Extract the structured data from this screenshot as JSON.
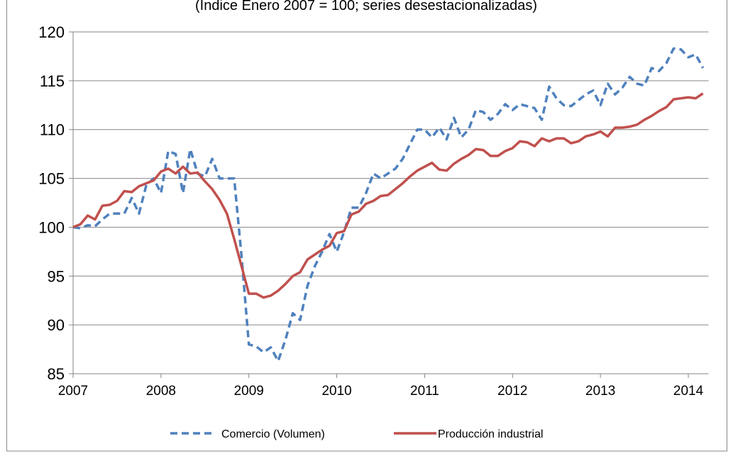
{
  "chart_data": {
    "type": "line",
    "subtitle": "(Índice Enero 2007 = 100; series desestacionalizadas)",
    "x": [
      2007,
      2007.083,
      2007.167,
      2007.25,
      2007.333,
      2007.417,
      2007.5,
      2007.583,
      2007.667,
      2007.75,
      2007.833,
      2007.917,
      2008,
      2008.083,
      2008.167,
      2008.25,
      2008.333,
      2008.417,
      2008.5,
      2008.583,
      2008.667,
      2008.75,
      2008.833,
      2008.917,
      2009,
      2009.083,
      2009.167,
      2009.25,
      2009.333,
      2009.417,
      2009.5,
      2009.583,
      2009.667,
      2009.75,
      2009.833,
      2009.917,
      2010,
      2010.083,
      2010.167,
      2010.25,
      2010.333,
      2010.417,
      2010.5,
      2010.583,
      2010.667,
      2010.75,
      2010.833,
      2010.917,
      2011,
      2011.083,
      2011.167,
      2011.25,
      2011.333,
      2011.417,
      2011.5,
      2011.583,
      2011.667,
      2011.75,
      2011.833,
      2011.917,
      2012,
      2012.083,
      2012.167,
      2012.25,
      2012.333,
      2012.417,
      2012.5,
      2012.583,
      2012.667,
      2012.75,
      2012.833,
      2012.917,
      2013,
      2013.083,
      2013.167,
      2013.25,
      2013.333,
      2013.417,
      2013.5,
      2013.583,
      2013.667,
      2013.75,
      2013.833,
      2013.917,
      2014,
      2014.083,
      2014.167
    ],
    "series": [
      {
        "name": "Comercio (Volumen)",
        "color": "#4f81bd",
        "style": "dashed",
        "values": [
          100,
          99.9,
          100.2,
          100.1,
          100.8,
          101.4,
          101.4,
          101.4,
          103,
          101.4,
          104.3,
          105,
          103.5,
          107.8,
          107.5,
          103.5,
          108,
          105.5,
          105.2,
          107,
          105,
          105,
          105,
          97,
          88,
          87.8,
          87.2,
          87.7,
          86.3,
          88.5,
          91.2,
          90.5,
          94,
          96,
          97.5,
          99.3,
          97.5,
          99.5,
          102,
          102,
          103.5,
          105.5,
          105,
          105.5,
          106,
          107,
          108.5,
          110,
          110,
          109.2,
          110.2,
          109,
          111.2,
          109.2,
          110,
          112,
          111.8,
          111,
          111.6,
          112.6,
          112,
          112.6,
          112.4,
          112.2,
          111,
          114.4,
          113.2,
          112.5,
          112.4,
          113,
          113.6,
          114,
          112.5,
          114.7,
          113.6,
          114.3,
          115.4,
          114.7,
          114.5,
          116.3,
          116,
          116.8,
          118.3,
          118.2,
          117.4,
          117.7,
          116.3
        ]
      },
      {
        "name": "Producción industrial",
        "color": "#c0504d",
        "style": "solid",
        "values": [
          100,
          100.3,
          101.2,
          100.8,
          102.2,
          102.3,
          102.7,
          103.7,
          103.6,
          104.2,
          104.5,
          104.8,
          105.7,
          106,
          105.5,
          106.2,
          105.5,
          105.6,
          104.7,
          103.9,
          102.8,
          101.4,
          98.8,
          96,
          93.2,
          93.2,
          92.8,
          93,
          93.5,
          94.2,
          95,
          95.4,
          96.7,
          97.2,
          97.7,
          98.1,
          99.4,
          99.6,
          101.3,
          101.6,
          102.4,
          102.7,
          103.2,
          103.3,
          103.9,
          104.5,
          105.2,
          105.8,
          106.2,
          106.6,
          105.9,
          105.8,
          106.5,
          107,
          107.4,
          108,
          107.9,
          107.3,
          107.3,
          107.8,
          108.1,
          108.8,
          108.7,
          108.3,
          109.1,
          108.8,
          109.1,
          109.1,
          108.6,
          108.8,
          109.3,
          109.5,
          109.8,
          109.3,
          110.2,
          110.2,
          110.3,
          110.5,
          111,
          111.4,
          111.9,
          112.3,
          113.1,
          113.2,
          113.3,
          113.2,
          113.7
        ]
      }
    ],
    "xlim": [
      2007,
      2014.23
    ],
    "xticks": [
      2007,
      2008,
      2009,
      2010,
      2011,
      2012,
      2013,
      2014
    ],
    "ylim": [
      85,
      120
    ],
    "yticks": [
      85,
      90,
      95,
      100,
      105,
      110,
      115,
      120
    ],
    "grid": true,
    "legend": "bottom"
  }
}
